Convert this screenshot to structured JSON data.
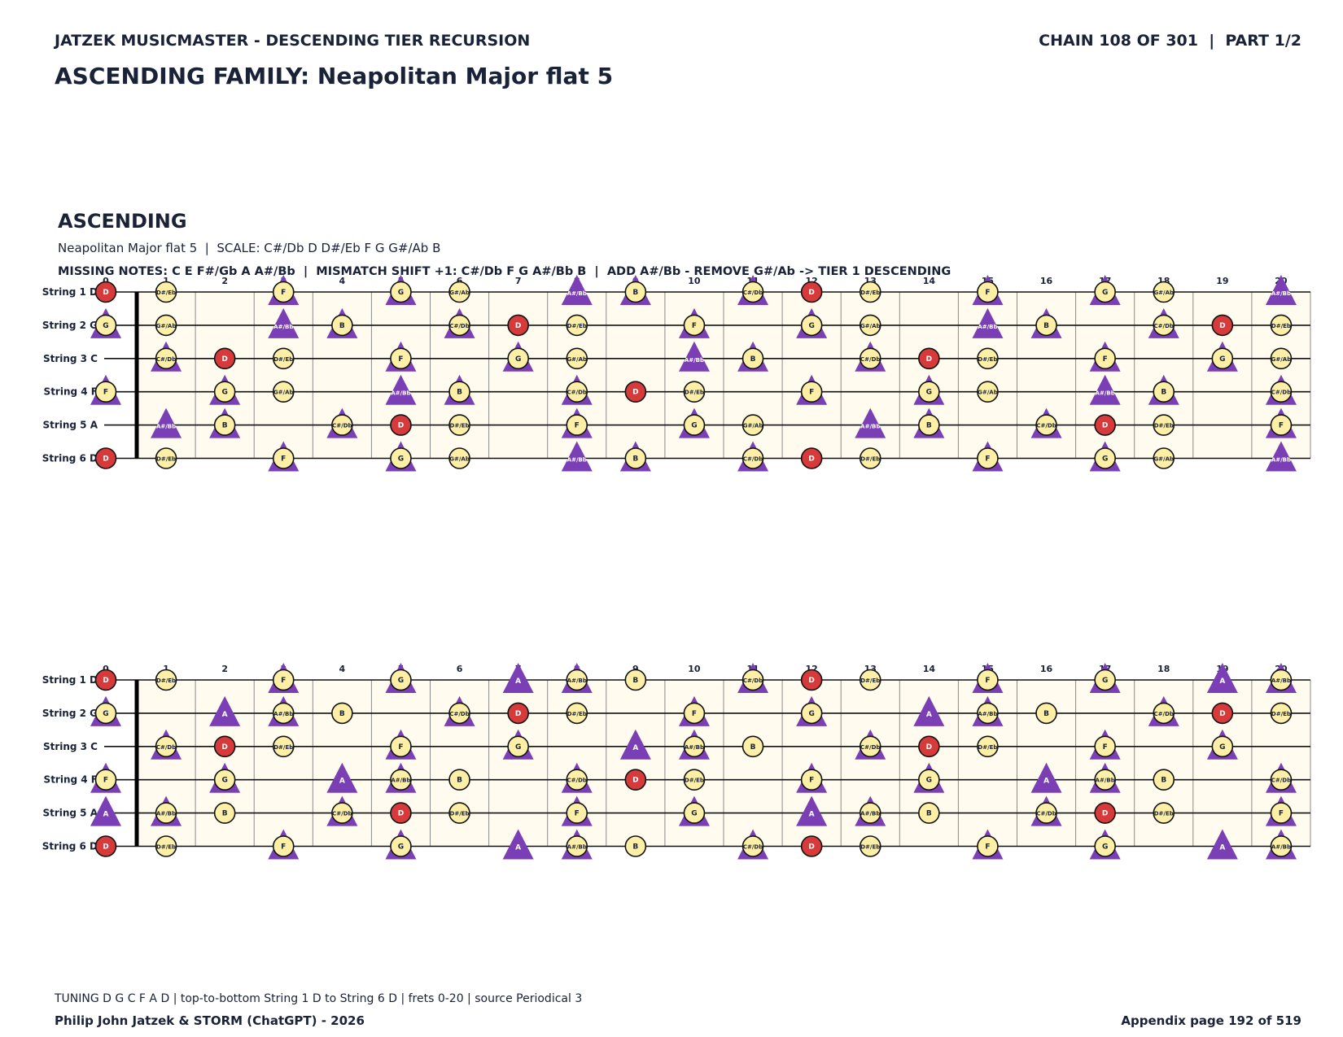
{
  "header": {
    "series_title": "JATZEK MUSICMASTER - DESCENDING TIER RECURSION",
    "chain": "CHAIN 108 OF 301  |  PART 1/2",
    "family_title": "ASCENDING FAMILY: Neapolitan Major flat 5"
  },
  "section": {
    "title": "ASCENDING",
    "scale_line": "Neapolitan Major flat 5  |  SCALE: C#/Db D D#/Eb F G G#/Ab B",
    "missing_line": "MISSING NOTES: C E F#/Gb A A#/Bb  |  MISMATCH SHIFT +1: C#/Db F G A#/Bb B  |  ADD A#/Bb - REMOVE G#/Ab -> TIER 1 DESCENDING"
  },
  "boards": [
    {
      "frets": [
        0,
        1,
        2,
        3,
        4,
        5,
        6,
        7,
        8,
        9,
        10,
        11,
        12,
        13,
        14,
        15,
        16,
        17,
        18,
        19,
        20
      ],
      "strings": [
        {
          "label": "String 1 D",
          "notes": [
            "D",
            "D#/Eb",
            null,
            "F",
            null,
            "G",
            "G#/Ab",
            null,
            "A#/Bb",
            "B",
            null,
            "C#/Db",
            "D",
            "D#/Eb",
            null,
            "F",
            null,
            "G",
            "G#/Ab",
            null,
            "A#/Bb"
          ],
          "marks": [
            "root",
            "note",
            null,
            "both",
            null,
            "both",
            "note",
            null,
            "tri",
            "both",
            null,
            "both",
            "root",
            "note",
            null,
            "both",
            null,
            "both",
            "note",
            null,
            "tri"
          ]
        },
        {
          "label": "String 2 G",
          "notes": [
            "G",
            "G#/Ab",
            null,
            "A#/Bb",
            "B",
            null,
            "C#/Db",
            "D",
            "D#/Eb",
            null,
            "F",
            null,
            "G",
            "G#/Ab",
            null,
            "A#/Bb",
            "B",
            null,
            "C#/Db",
            "D",
            "D#/Eb"
          ],
          "marks": [
            "both",
            "note",
            null,
            "tri",
            "both",
            null,
            "both",
            "root",
            "note",
            null,
            "both",
            null,
            "both",
            "note",
            null,
            "tri",
            "both",
            null,
            "both",
            "root",
            "note"
          ]
        },
        {
          "label": "String 3 C",
          "notes": [
            null,
            "C#/Db",
            "D",
            "D#/Eb",
            null,
            "F",
            null,
            "G",
            "G#/Ab",
            null,
            "A#/Bb",
            "B",
            null,
            "C#/Db",
            "D",
            "D#/Eb",
            null,
            "F",
            null,
            "G",
            "G#/Ab"
          ],
          "marks": [
            null,
            "both",
            "root",
            "note",
            null,
            "both",
            null,
            "both",
            "note",
            null,
            "tri",
            "both",
            null,
            "both",
            "root",
            "note",
            null,
            "both",
            null,
            "both",
            "note"
          ]
        },
        {
          "label": "String 4 F",
          "notes": [
            "F",
            null,
            "G",
            "G#/Ab",
            null,
            "A#/Bb",
            "B",
            null,
            "C#/Db",
            "D",
            "D#/Eb",
            null,
            "F",
            null,
            "G",
            "G#/Ab",
            null,
            "A#/Bb",
            "B",
            null,
            "C#/Db"
          ],
          "marks": [
            "both",
            null,
            "both",
            "note",
            null,
            "tri",
            "both",
            null,
            "both",
            "root",
            "note",
            null,
            "both",
            null,
            "both",
            "note",
            null,
            "tri",
            "both",
            null,
            "both"
          ]
        },
        {
          "label": "String 5 A",
          "notes": [
            null,
            "A#/Bb",
            "B",
            null,
            "C#/Db",
            "D",
            "D#/Eb",
            null,
            "F",
            null,
            "G",
            "G#/Ab",
            null,
            "A#/Bb",
            "B",
            null,
            "C#/Db",
            "D",
            "D#/Eb",
            null,
            "F"
          ],
          "marks": [
            null,
            "tri",
            "both",
            null,
            "both",
            "root",
            "note",
            null,
            "both",
            null,
            "both",
            "note",
            null,
            "tri",
            "both",
            null,
            "both",
            "root",
            "note",
            null,
            "both"
          ]
        },
        {
          "label": "String 6 D",
          "notes": [
            "D",
            "D#/Eb",
            null,
            "F",
            null,
            "G",
            "G#/Ab",
            null,
            "A#/Bb",
            "B",
            null,
            "C#/Db",
            "D",
            "D#/Eb",
            null,
            "F",
            null,
            "G",
            "G#/Ab",
            null,
            "A#/Bb"
          ],
          "marks": [
            "root",
            "note",
            null,
            "both",
            null,
            "both",
            "note",
            null,
            "tri",
            "both",
            null,
            "both",
            "root",
            "note",
            null,
            "both",
            null,
            "both",
            "note",
            null,
            "tri"
          ]
        }
      ]
    },
    {
      "frets": [
        0,
        1,
        2,
        3,
        4,
        5,
        6,
        7,
        8,
        9,
        10,
        11,
        12,
        13,
        14,
        15,
        16,
        17,
        18,
        19,
        20
      ],
      "strings": [
        {
          "label": "String 1 D",
          "notes": [
            "D",
            "D#/Eb",
            null,
            "F",
            null,
            "G",
            null,
            "A",
            "A#/Bb",
            "B",
            null,
            "C#/Db",
            "D",
            "D#/Eb",
            null,
            "F",
            null,
            "G",
            null,
            "A",
            "A#/Bb"
          ],
          "marks": [
            "root",
            "note",
            null,
            "both",
            null,
            "both",
            null,
            "tri",
            "both",
            "note",
            null,
            "both",
            "root",
            "note",
            null,
            "both",
            null,
            "both",
            null,
            "tri",
            "both"
          ]
        },
        {
          "label": "String 2 G",
          "notes": [
            "G",
            null,
            "A",
            "A#/Bb",
            "B",
            null,
            "C#/Db",
            "D",
            "D#/Eb",
            null,
            "F",
            null,
            "G",
            null,
            "A",
            "A#/Bb",
            "B",
            null,
            "C#/Db",
            "D",
            "D#/Eb"
          ],
          "marks": [
            "both",
            null,
            "tri",
            "both",
            "note",
            null,
            "both",
            "root",
            "note",
            null,
            "both",
            null,
            "both",
            null,
            "tri",
            "both",
            "note",
            null,
            "both",
            "root",
            "note"
          ]
        },
        {
          "label": "String 3 C",
          "notes": [
            null,
            "C#/Db",
            "D",
            "D#/Eb",
            null,
            "F",
            null,
            "G",
            null,
            "A",
            "A#/Bb",
            "B",
            null,
            "C#/Db",
            "D",
            "D#/Eb",
            null,
            "F",
            null,
            "G",
            null
          ],
          "marks": [
            null,
            "both",
            "root",
            "note",
            null,
            "both",
            null,
            "both",
            null,
            "tri",
            "both",
            "note",
            null,
            "both",
            "root",
            "note",
            null,
            "both",
            null,
            "both",
            null
          ]
        },
        {
          "label": "String 4 F",
          "notes": [
            "F",
            null,
            "G",
            null,
            "A",
            "A#/Bb",
            "B",
            null,
            "C#/Db",
            "D",
            "D#/Eb",
            null,
            "F",
            null,
            "G",
            null,
            "A",
            "A#/Bb",
            "B",
            null,
            "C#/Db"
          ],
          "marks": [
            "both",
            null,
            "both",
            null,
            "tri",
            "both",
            "note",
            null,
            "both",
            "root",
            "note",
            null,
            "both",
            null,
            "both",
            null,
            "tri",
            "both",
            "note",
            null,
            "both"
          ]
        },
        {
          "label": "String 5 A",
          "notes": [
            "A",
            "A#/Bb",
            "B",
            null,
            "C#/Db",
            "D",
            "D#/Eb",
            null,
            "F",
            null,
            "G",
            null,
            "A",
            "A#/Bb",
            "B",
            null,
            "C#/Db",
            "D",
            "D#/Eb",
            null,
            "F"
          ],
          "marks": [
            "tri",
            "both",
            "note",
            null,
            "both",
            "root",
            "note",
            null,
            "both",
            null,
            "both",
            null,
            "tri",
            "both",
            "note",
            null,
            "both",
            "root",
            "note",
            null,
            "both"
          ]
        },
        {
          "label": "String 6 D",
          "notes": [
            "D",
            "D#/Eb",
            null,
            "F",
            null,
            "G",
            null,
            "A",
            "A#/Bb",
            "B",
            null,
            "C#/Db",
            "D",
            "D#/Eb",
            null,
            "F",
            null,
            "G",
            null,
            "A",
            "A#/Bb"
          ],
          "marks": [
            "root",
            "note",
            null,
            "both",
            null,
            "both",
            null,
            "tri",
            "both",
            "note",
            null,
            "both",
            "root",
            "note",
            null,
            "both",
            null,
            "both",
            null,
            "tri",
            "both"
          ]
        }
      ]
    }
  ],
  "footer": {
    "tuning": "TUNING D G C F A D | top-to-bottom String 1 D to String 6 D | frets 0-20 | source Periodical 3",
    "credit": "Philip John Jatzek & STORM (ChatGPT) - 2026",
    "page": "Appendix page 192 of 519"
  }
}
